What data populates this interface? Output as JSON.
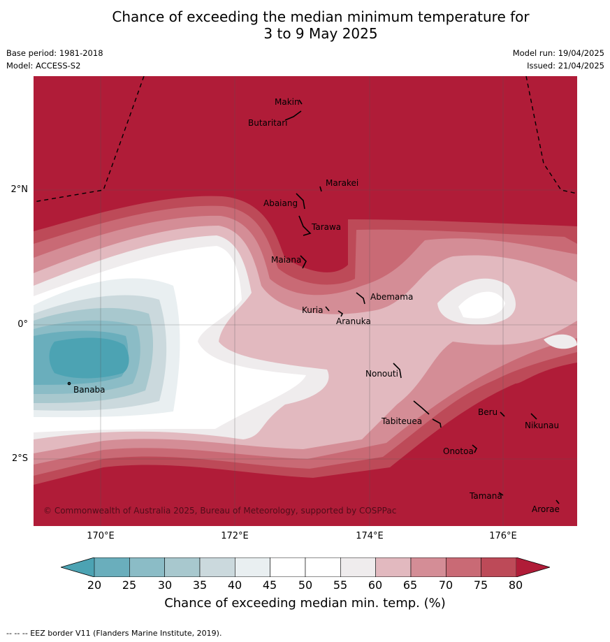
{
  "title_line1": "Chance of exceeding the median minimum temperature for",
  "title_line2": "3 to 9 May 2025",
  "meta": {
    "base_period": "Base period: 1981-2018",
    "model": "Model: ACCESS-S2",
    "model_run": "Model run: 19/04/2025",
    "issued": "Issued: 21/04/2025"
  },
  "axes": {
    "y_labels": [
      "2°N",
      "0°",
      "2°S"
    ],
    "x_labels": [
      "170°E",
      "172°E",
      "174°E",
      "176°E"
    ]
  },
  "places": [
    {
      "name": "Makin"
    },
    {
      "name": "Butaritari"
    },
    {
      "name": "Marakei"
    },
    {
      "name": "Abaiang"
    },
    {
      "name": "Tarawa"
    },
    {
      "name": "Maiana"
    },
    {
      "name": "Abemama"
    },
    {
      "name": "Kuria"
    },
    {
      "name": "Aranuka"
    },
    {
      "name": "Nonouti"
    },
    {
      "name": "Banaba"
    },
    {
      "name": "Beru"
    },
    {
      "name": "Tabiteuea"
    },
    {
      "name": "Nikunau"
    },
    {
      "name": "Onotoa"
    },
    {
      "name": "Tamana"
    },
    {
      "name": "Arorae"
    }
  ],
  "copyright": "© Commonwealth of Australia 2025, Bureau of Meteorology, supported by COSPPac",
  "colorbar": {
    "ticks": [
      "20",
      "25",
      "30",
      "35",
      "40",
      "45",
      "50",
      "55",
      "60",
      "65",
      "70",
      "75",
      "80"
    ],
    "colors": [
      "#4ca3b3",
      "#6aaebc",
      "#8bbcc6",
      "#a8c8ce",
      "#cbd9dd",
      "#e9eff1",
      "#ffffff",
      "#ffffff",
      "#efeced",
      "#e2b9bf",
      "#d48d96",
      "#c96a75",
      "#bd4a58",
      "#b01c38"
    ],
    "label": "Chance of exceeding median min. temp. (%)"
  },
  "footer": "--  --  -- EEZ border V11 (Flanders Marine Institute, 2019)."
}
